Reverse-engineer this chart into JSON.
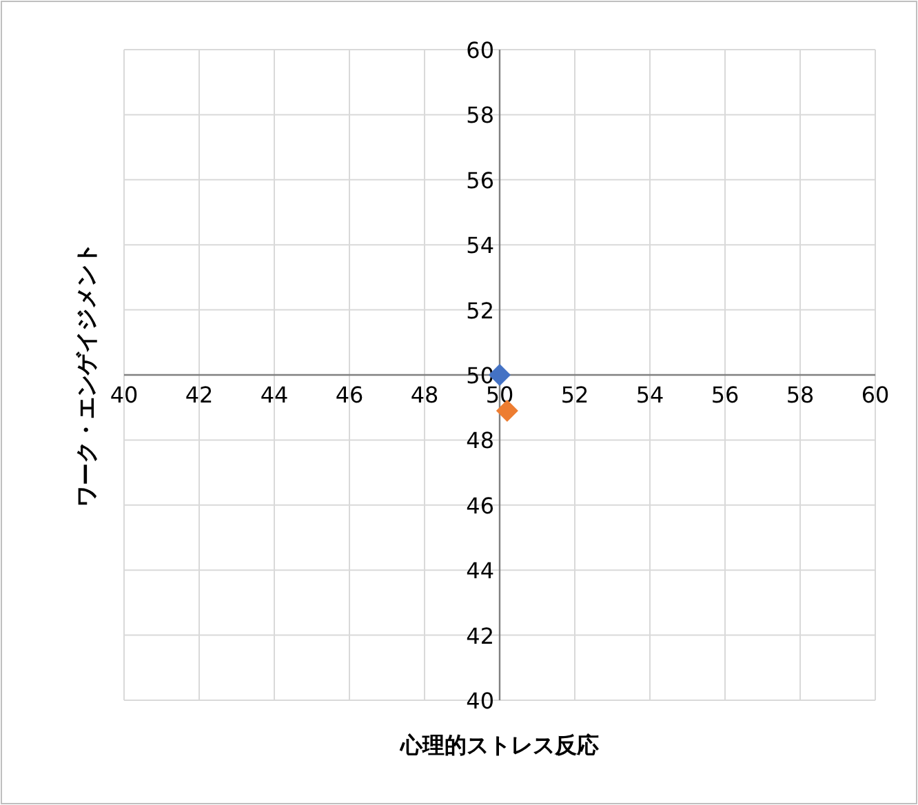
{
  "chart_data": {
    "type": "scatter",
    "xlabel": "心理的ストレス反応",
    "ylabel": "ワーク・エンゲイジメント",
    "xlim": [
      40,
      60
    ],
    "ylim": [
      40,
      60
    ],
    "xticks": [
      40,
      42,
      44,
      46,
      48,
      50,
      52,
      54,
      56,
      58,
      60
    ],
    "yticks": [
      40,
      42,
      44,
      46,
      48,
      50,
      52,
      54,
      56,
      58,
      60
    ],
    "grid": true,
    "marker": "diamond",
    "series": [
      {
        "color": "#4472c4",
        "x": [
          50
        ],
        "values": [
          50
        ]
      },
      {
        "color": "#ed7d31",
        "x": [
          50.2
        ],
        "values": [
          48.9
        ]
      }
    ]
  }
}
